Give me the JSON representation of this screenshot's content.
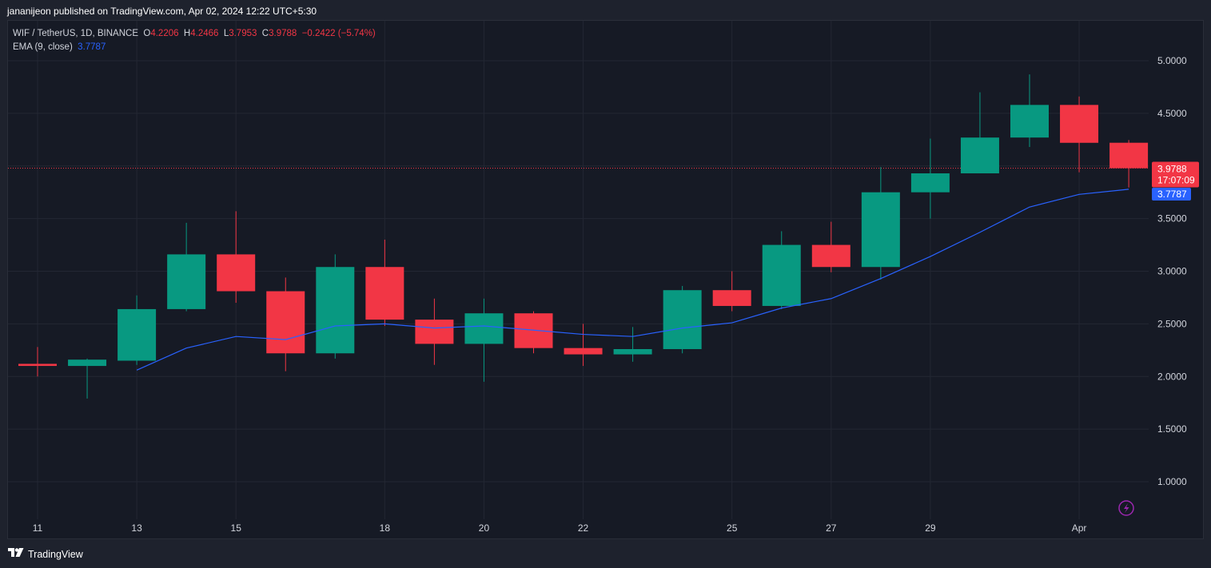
{
  "header": {
    "published_line": "jananijeon published on TradingView.com, Apr 02, 2024 12:22 UTC+5:30"
  },
  "legend": {
    "symbol": "WIF / TetherUS, 1D, BINANCE",
    "o_label": "O",
    "o_value": "4.2206",
    "h_label": "H",
    "h_value": "4.2466",
    "l_label": "L",
    "l_value": "3.7953",
    "c_label": "C",
    "c_value": "3.9788",
    "change": "−0.2422 (−5.74%)",
    "ema_label": "EMA (9, close)",
    "ema_value": "3.7787"
  },
  "price_tags": {
    "last": "3.9788",
    "countdown": "17:07:09",
    "ema": "3.7787"
  },
  "footer": {
    "brand": "TradingView"
  },
  "colors": {
    "up": "#089981",
    "down": "#f23645",
    "ema": "#2962ff",
    "grid": "#232733",
    "background": "#161a25"
  },
  "icons": {
    "alert": "lightning-icon",
    "brand": "tradingview-logo-icon"
  },
  "chart_data": {
    "type": "candlestick",
    "y_ticks": [
      "5.0000",
      "4.5000",
      "4.0000",
      "3.5000",
      "3.0000",
      "2.5000",
      "2.0000",
      "1.5000",
      "1.0000"
    ],
    "x_tick_labels": [
      "11",
      "13",
      "15",
      "18",
      "20",
      "22",
      "25",
      "27",
      "29",
      "Apr"
    ],
    "ylim": [
      0.75,
      5.15
    ],
    "grid": true,
    "candles": [
      {
        "date": "Mar 11",
        "o": 2.12,
        "h": 2.28,
        "l": 2.0,
        "c": 2.1
      },
      {
        "date": "Mar 12",
        "o": 2.1,
        "h": 2.17,
        "l": 1.79,
        "c": 2.16
      },
      {
        "date": "Mar 13",
        "o": 2.15,
        "h": 2.77,
        "l": 2.11,
        "c": 2.64
      },
      {
        "date": "Mar 14",
        "o": 2.64,
        "h": 3.46,
        "l": 2.62,
        "c": 3.16
      },
      {
        "date": "Mar 15",
        "o": 3.16,
        "h": 3.57,
        "l": 2.7,
        "c": 2.81
      },
      {
        "date": "Mar 16",
        "o": 2.81,
        "h": 2.94,
        "l": 2.05,
        "c": 2.22
      },
      {
        "date": "Mar 17",
        "o": 2.22,
        "h": 3.16,
        "l": 2.17,
        "c": 3.04
      },
      {
        "date": "Mar 18",
        "o": 3.04,
        "h": 3.3,
        "l": 2.48,
        "c": 2.54
      },
      {
        "date": "Mar 19",
        "o": 2.54,
        "h": 2.74,
        "l": 2.11,
        "c": 2.31
      },
      {
        "date": "Mar 20",
        "o": 2.31,
        "h": 2.74,
        "l": 1.95,
        "c": 2.6
      },
      {
        "date": "Mar 21",
        "o": 2.6,
        "h": 2.62,
        "l": 2.22,
        "c": 2.27
      },
      {
        "date": "Mar 22",
        "o": 2.27,
        "h": 2.5,
        "l": 2.1,
        "c": 2.21
      },
      {
        "date": "Mar 23",
        "o": 2.21,
        "h": 2.47,
        "l": 2.14,
        "c": 2.26
      },
      {
        "date": "Mar 24",
        "o": 2.26,
        "h": 2.86,
        "l": 2.22,
        "c": 2.82
      },
      {
        "date": "Mar 25",
        "o": 2.82,
        "h": 3.0,
        "l": 2.62,
        "c": 2.67
      },
      {
        "date": "Mar 26",
        "o": 2.67,
        "h": 3.38,
        "l": 2.64,
        "c": 3.25
      },
      {
        "date": "Mar 27",
        "o": 3.25,
        "h": 3.47,
        "l": 2.99,
        "c": 3.04
      },
      {
        "date": "Mar 28",
        "o": 3.04,
        "h": 3.99,
        "l": 2.92,
        "c": 3.75
      },
      {
        "date": "Mar 29",
        "o": 3.75,
        "h": 4.26,
        "l": 3.5,
        "c": 3.93
      },
      {
        "date": "Mar 30",
        "o": 3.93,
        "h": 4.7,
        "l": 3.93,
        "c": 4.27
      },
      {
        "date": "Mar 31",
        "o": 4.27,
        "h": 4.87,
        "l": 4.18,
        "c": 4.58
      },
      {
        "date": "Apr 1",
        "o": 4.58,
        "h": 4.66,
        "l": 3.94,
        "c": 4.22
      },
      {
        "date": "Apr 2",
        "o": 4.2206,
        "h": 4.2466,
        "l": 3.7953,
        "c": 3.9788
      }
    ],
    "ema": {
      "name": "EMA (9, close)",
      "dates": [
        "Mar 13",
        "Mar 14",
        "Mar 15",
        "Mar 16",
        "Mar 17",
        "Mar 18",
        "Mar 19",
        "Mar 20",
        "Mar 21",
        "Mar 22",
        "Mar 23",
        "Mar 24",
        "Mar 25",
        "Mar 26",
        "Mar 27",
        "Mar 28",
        "Mar 29",
        "Mar 30",
        "Mar 31",
        "Apr 1",
        "Apr 2"
      ],
      "values": [
        2.06,
        2.27,
        2.38,
        2.35,
        2.48,
        2.5,
        2.46,
        2.48,
        2.44,
        2.4,
        2.38,
        2.46,
        2.51,
        2.65,
        2.74,
        2.93,
        3.14,
        3.37,
        3.61,
        3.73,
        3.7787
      ]
    },
    "last_price": 3.9788,
    "ema_last": 3.7787
  }
}
